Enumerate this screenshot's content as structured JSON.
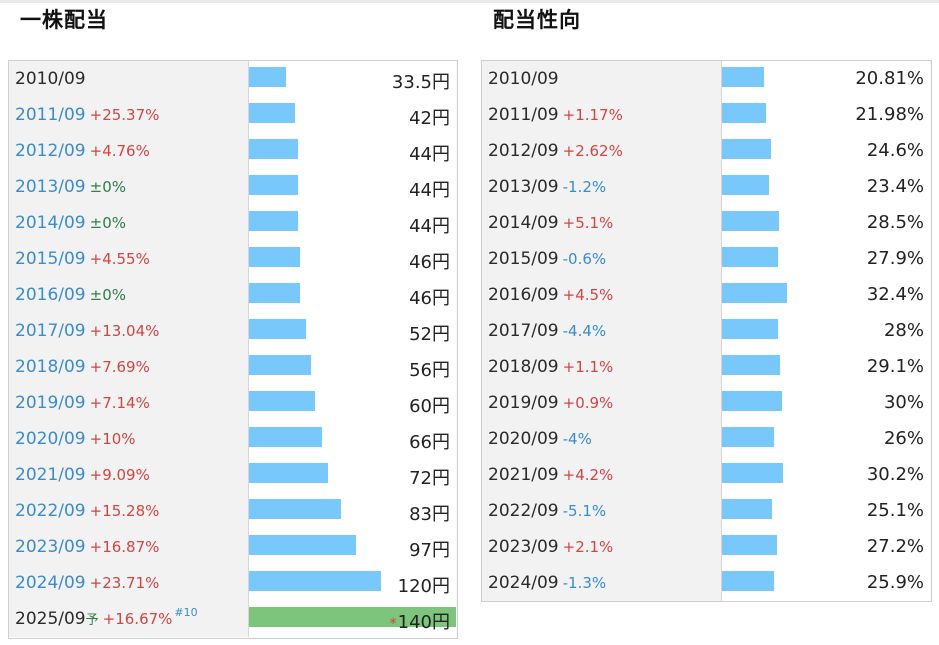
{
  "left_title": "一株配当",
  "right_title": "配当性向",
  "chart_data": [
    {
      "type": "bar",
      "title": "一株配当",
      "unit": "円",
      "rows": [
        {
          "year": "2010/09",
          "change": "",
          "value": 33.5,
          "label": "33.5円"
        },
        {
          "year": "2011/09",
          "change": "+25.37%",
          "value": 42,
          "label": "42円"
        },
        {
          "year": "2012/09",
          "change": "+4.76%",
          "value": 44,
          "label": "44円"
        },
        {
          "year": "2013/09",
          "change": "±0%",
          "value": 44,
          "label": "44円"
        },
        {
          "year": "2014/09",
          "change": "±0%",
          "value": 44,
          "label": "44円"
        },
        {
          "year": "2015/09",
          "change": "+4.55%",
          "value": 46,
          "label": "46円"
        },
        {
          "year": "2016/09",
          "change": "±0%",
          "value": 46,
          "label": "46円"
        },
        {
          "year": "2017/09",
          "change": "+13.04%",
          "value": 52,
          "label": "52円"
        },
        {
          "year": "2018/09",
          "change": "+7.69%",
          "value": 56,
          "label": "56円"
        },
        {
          "year": "2019/09",
          "change": "+7.14%",
          "value": 60,
          "label": "60円"
        },
        {
          "year": "2020/09",
          "change": "+10%",
          "value": 66,
          "label": "66円"
        },
        {
          "year": "2021/09",
          "change": "+9.09%",
          "value": 72,
          "label": "72円"
        },
        {
          "year": "2022/09",
          "change": "+15.28%",
          "value": 83,
          "label": "83円"
        },
        {
          "year": "2023/09",
          "change": "+16.87%",
          "value": 97,
          "label": "97円"
        },
        {
          "year": "2024/09",
          "change": "+23.71%",
          "value": 120,
          "label": "120円"
        },
        {
          "year": "2025/09",
          "forecast_mark": "予",
          "change": "+16.67%",
          "ref": "#10",
          "value": 140,
          "label": "140円",
          "asterisk": "*",
          "forecast": true
        }
      ]
    },
    {
      "type": "bar",
      "title": "配当性向",
      "unit": "%",
      "rows": [
        {
          "year": "2010/09",
          "change": "",
          "value": 20.81,
          "label": "20.81%"
        },
        {
          "year": "2011/09",
          "change": "+1.17%",
          "value": 21.98,
          "label": "21.98%"
        },
        {
          "year": "2012/09",
          "change": "+2.62%",
          "value": 24.6,
          "label": "24.6%"
        },
        {
          "year": "2013/09",
          "change": "-1.2%",
          "value": 23.4,
          "label": "23.4%"
        },
        {
          "year": "2014/09",
          "change": "+5.1%",
          "value": 28.5,
          "label": "28.5%"
        },
        {
          "year": "2015/09",
          "change": "-0.6%",
          "value": 27.9,
          "label": "27.9%"
        },
        {
          "year": "2016/09",
          "change": "+4.5%",
          "value": 32.4,
          "label": "32.4%"
        },
        {
          "year": "2017/09",
          "change": "-4.4%",
          "value": 28,
          "label": "28%"
        },
        {
          "year": "2018/09",
          "change": "+1.1%",
          "value": 29.1,
          "label": "29.1%"
        },
        {
          "year": "2019/09",
          "change": "+0.9%",
          "value": 30,
          "label": "30%"
        },
        {
          "year": "2020/09",
          "change": "-4%",
          "value": 26,
          "label": "26%"
        },
        {
          "year": "2021/09",
          "change": "+4.2%",
          "value": 30.2,
          "label": "30.2%"
        },
        {
          "year": "2022/09",
          "change": "-5.1%",
          "value": 25.1,
          "label": "25.1%"
        },
        {
          "year": "2023/09",
          "change": "+2.1%",
          "value": 27.2,
          "label": "27.2%"
        },
        {
          "year": "2024/09",
          "change": "-1.3%",
          "value": 25.9,
          "label": "25.9%"
        }
      ]
    }
  ],
  "colors": {
    "bar": "#79c8fb",
    "forecast_bar": "#7dc47d",
    "positive": "#d14545",
    "negative": "#3b8bd0",
    "zero": "#2e7d4b",
    "link_year": "#3b8bd0"
  }
}
